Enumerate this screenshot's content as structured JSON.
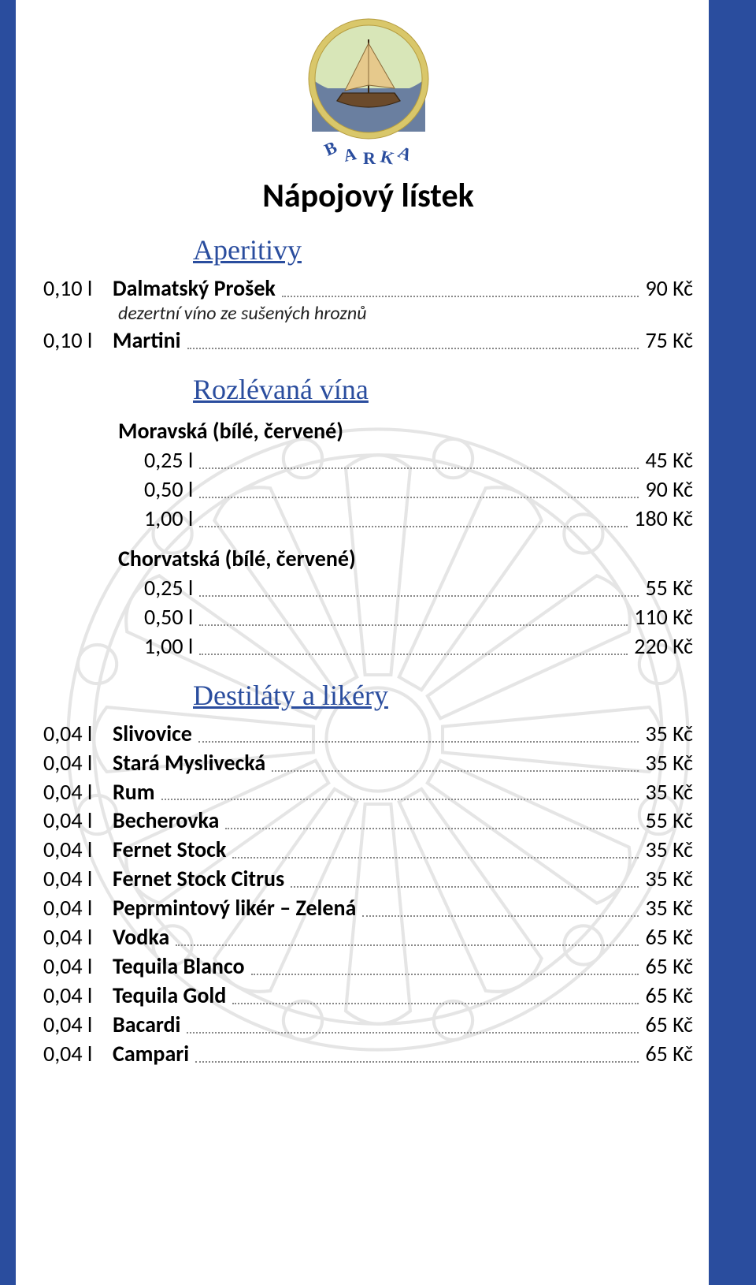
{
  "logo_text": "BARKA",
  "colors": {
    "side_bar": "#2a4d9e",
    "accent": "#2a4d9e",
    "text": "#000000",
    "dots": "#888888",
    "logo_ring": "#d9c76a",
    "logo_sky": "#d8e6b8",
    "logo_sea": "#6a7fa0",
    "logo_sail": "#e6c98c",
    "logo_hull": "#6b4a2b"
  },
  "title": "Nápojový lístek",
  "sections": [
    {
      "heading": "Aperitivy",
      "groups": [
        {
          "items": [
            {
              "vol": "0,10 l",
              "name": "Dalmatský Prošek",
              "bold": true,
              "desc": "dezertní víno ze sušených hroznů",
              "price": "90 Kč"
            },
            {
              "vol": "0,10 l",
              "name": "Martini",
              "bold": true,
              "price": "75 Kč"
            }
          ]
        }
      ]
    },
    {
      "heading": "Rozlévaná vína",
      "groups": [
        {
          "sub": "Moravská (bílé, červené)",
          "items": [
            {
              "indent": true,
              "name": "0,25 l",
              "price": "45 Kč"
            },
            {
              "indent": true,
              "name": "0,50 l",
              "price": "90 Kč"
            },
            {
              "indent": true,
              "name": "1,00 l",
              "price": "180 Kč"
            }
          ]
        },
        {
          "sub": "Chorvatská (bílé, červené)",
          "items": [
            {
              "indent": true,
              "name": "0,25 l",
              "price": "55 Kč"
            },
            {
              "indent": true,
              "name": "0,50 l",
              "price": "110 Kč"
            },
            {
              "indent": true,
              "name": "1,00 l",
              "price": "220 Kč"
            }
          ]
        }
      ]
    },
    {
      "heading": "Destiláty a likéry",
      "groups": [
        {
          "items": [
            {
              "vol": "0,04 l",
              "name": "Slivovice",
              "bold": true,
              "price": "35 Kč"
            },
            {
              "vol": "0,04 l",
              "name": "Stará Myslivecká",
              "bold": true,
              "price": "35 Kč"
            },
            {
              "vol": "0,04 l",
              "name": "Rum",
              "bold": true,
              "price": "35 Kč"
            },
            {
              "vol": "0,04 l",
              "name": "Becherovka",
              "bold": true,
              "price": "55 Kč"
            },
            {
              "vol": "0,04 l",
              "name": "Fernet Stock",
              "bold": true,
              "price": "35 Kč"
            },
            {
              "vol": "0,04 l",
              "name": "Fernet Stock Citrus",
              "bold": true,
              "price": "35 Kč"
            },
            {
              "vol": "0,04 l",
              "name": "Peprmintový likér – Zelená",
              "bold": true,
              "price": "35 Kč"
            },
            {
              "vol": "0,04 l",
              "name": "Vodka",
              "bold": true,
              "price": "65 Kč"
            },
            {
              "vol": "0,04 l",
              "name": "Tequila Blanco",
              "bold": true,
              "price": "65 Kč"
            },
            {
              "vol": "0,04 l",
              "name": "Tequila Gold",
              "bold": true,
              "price": "65 Kč"
            },
            {
              "vol": "0,04 l",
              "name": "Bacardi",
              "bold": true,
              "price": "65 Kč"
            },
            {
              "vol": "0,04 l",
              "name": "Campari",
              "bold": true,
              "price": "65 Kč"
            }
          ]
        }
      ]
    }
  ]
}
